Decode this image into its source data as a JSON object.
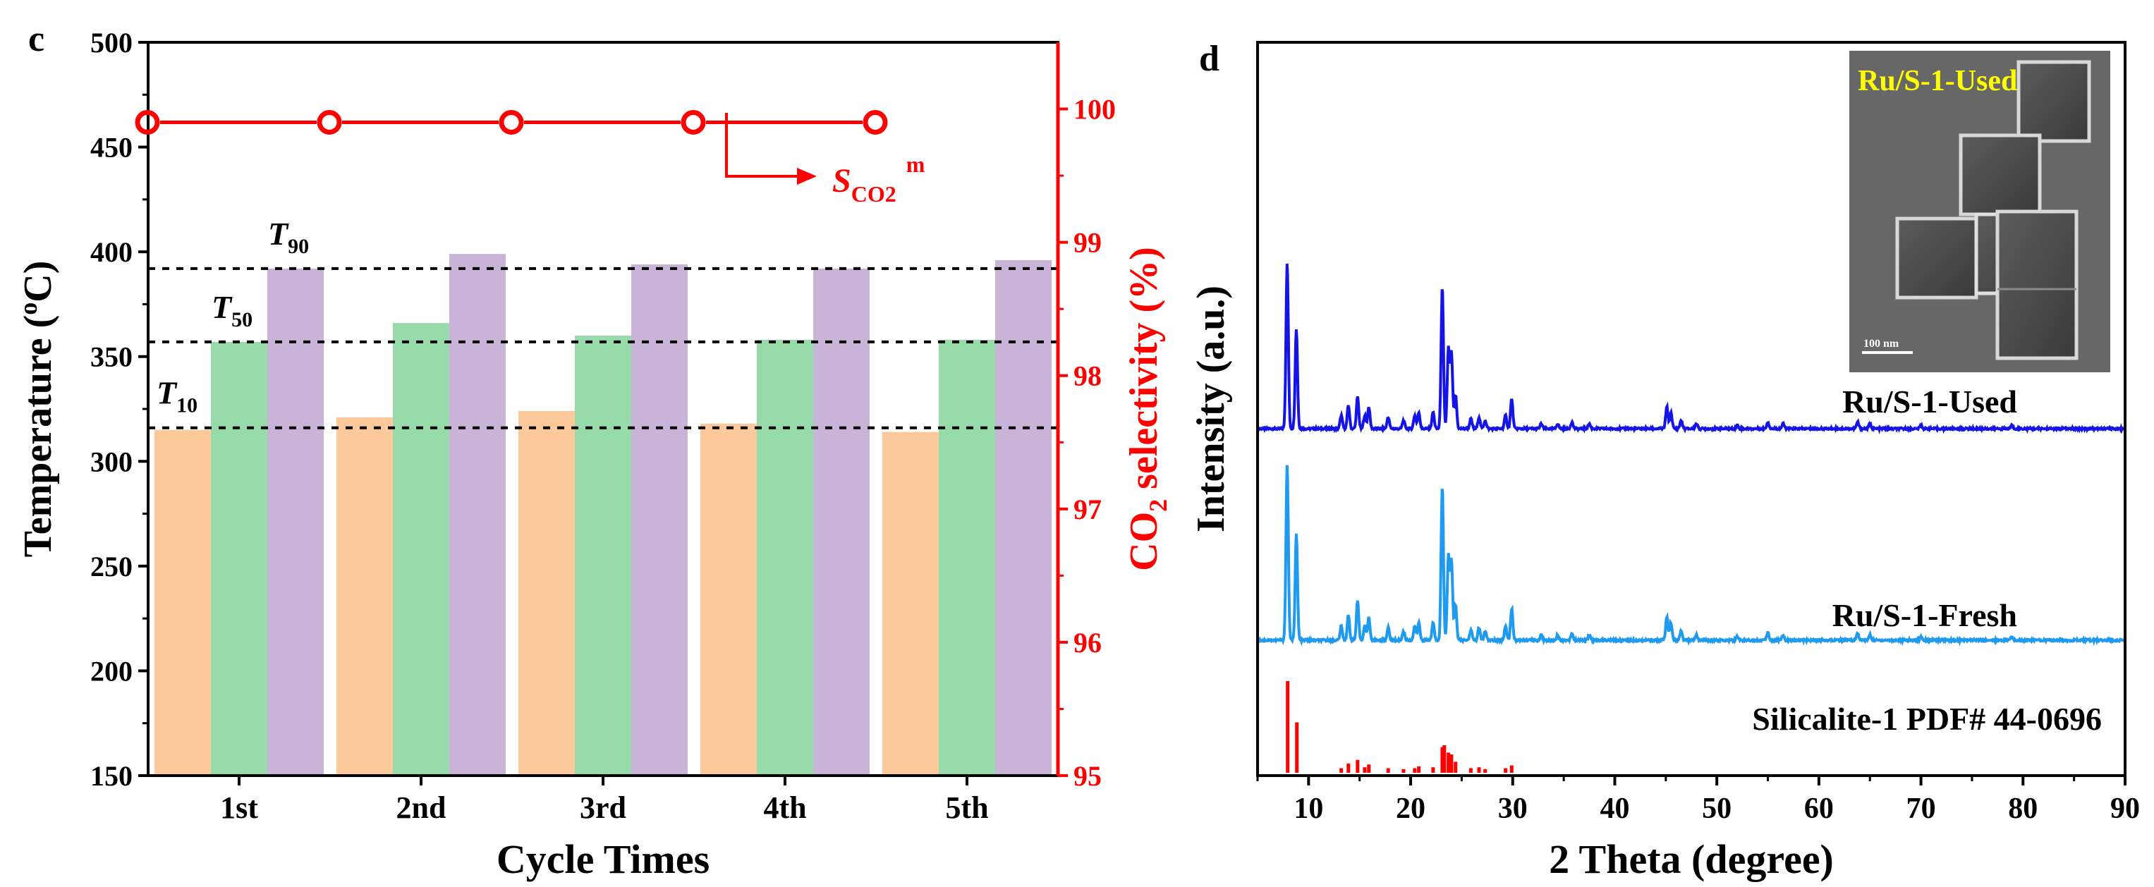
{
  "chart_data": [
    {
      "panel": "c",
      "type": "bar",
      "title": "",
      "xlabel": "Cycle Times",
      "ylabel": "Temperature (oC)",
      "ylabel_parts": [
        "Temperature (",
        "o",
        "C)"
      ],
      "ylim": [
        150,
        500
      ],
      "yticks": [
        150,
        200,
        250,
        300,
        350,
        400,
        450,
        500
      ],
      "categories": [
        "1st",
        "2nd",
        "3rd",
        "4th",
        "5th"
      ],
      "series": [
        {
          "name": "T10",
          "color": "#fdc99a",
          "values": [
            315,
            321,
            324,
            318,
            314
          ]
        },
        {
          "name": "T50",
          "color": "#97dbab",
          "values": [
            357,
            366,
            360,
            358,
            358
          ]
        },
        {
          "name": "T90",
          "color": "#c9b3d6",
          "values": [
            392,
            399,
            394,
            392,
            396
          ]
        }
      ],
      "reference_lines": [
        {
          "label_main": "T",
          "label_sub": "10",
          "value": 316
        },
        {
          "label_main": "T",
          "label_sub": "50",
          "value": 357
        },
        {
          "label_main": "T",
          "label_sub": "90",
          "value": 392
        }
      ],
      "secondary_axis": {
        "label": "CO2 selectivity (%)",
        "label_parts": [
          "CO",
          "2",
          " selectivity (%)"
        ],
        "ylim": [
          95,
          100.5
        ],
        "yticks": [
          95,
          96,
          97,
          98,
          99,
          100
        ],
        "color": "#ff0000",
        "series": {
          "name": "SCO2m",
          "values": [
            99.9,
            99.9,
            99.9,
            99.9,
            99.9
          ]
        }
      },
      "annotation": {
        "main": "S",
        "sub": "CO2",
        "sup": "m"
      }
    },
    {
      "panel": "d",
      "type": "line",
      "title": "",
      "xlabel": "2 Theta (degree)",
      "ylabel": "Intensity (a.u.)",
      "xlim": [
        5,
        90
      ],
      "xticks": [
        10,
        20,
        30,
        40,
        50,
        60,
        70,
        80,
        90
      ],
      "series": [
        {
          "name": "Ru/S-1-Used",
          "color": "#1414e6",
          "peaks": [
            [
              7.9,
              1.0
            ],
            [
              8.8,
              0.6
            ],
            [
              13.2,
              0.08
            ],
            [
              13.9,
              0.14
            ],
            [
              14.8,
              0.19
            ],
            [
              15.5,
              0.08
            ],
            [
              15.9,
              0.13
            ],
            [
              17.8,
              0.07
            ],
            [
              19.3,
              0.05
            ],
            [
              20.4,
              0.08
            ],
            [
              20.8,
              0.1
            ],
            [
              22.2,
              0.1
            ],
            [
              23.1,
              0.85
            ],
            [
              23.7,
              0.48
            ],
            [
              24.0,
              0.45
            ],
            [
              24.4,
              0.2
            ],
            [
              25.9,
              0.06
            ],
            [
              26.7,
              0.07
            ],
            [
              27.3,
              0.05
            ],
            [
              29.3,
              0.08
            ],
            [
              29.9,
              0.18
            ],
            [
              32.8,
              0.03
            ],
            [
              34.4,
              0.03
            ],
            [
              35.8,
              0.04
            ],
            [
              37.5,
              0.03
            ],
            [
              45.1,
              0.13
            ],
            [
              45.5,
              0.1
            ],
            [
              46.5,
              0.05
            ],
            [
              48.0,
              0.03
            ],
            [
              52.0,
              0.02
            ],
            [
              55.0,
              0.04
            ],
            [
              56.5,
              0.03
            ],
            [
              63.8,
              0.04
            ],
            [
              65.0,
              0.03
            ],
            [
              70.0,
              0.02
            ],
            [
              78.9,
              0.02
            ]
          ]
        },
        {
          "name": "Ru/S-1-Fresh",
          "color": "#1e9bf0",
          "peaks": [
            [
              7.9,
              1.0
            ],
            [
              8.8,
              0.6
            ],
            [
              13.2,
              0.08
            ],
            [
              13.9,
              0.14
            ],
            [
              14.8,
              0.22
            ],
            [
              15.5,
              0.08
            ],
            [
              15.9,
              0.13
            ],
            [
              17.8,
              0.07
            ],
            [
              19.3,
              0.05
            ],
            [
              20.4,
              0.08
            ],
            [
              20.8,
              0.1
            ],
            [
              22.2,
              0.1
            ],
            [
              23.1,
              0.88
            ],
            [
              23.7,
              0.48
            ],
            [
              24.0,
              0.45
            ],
            [
              24.4,
              0.2
            ],
            [
              25.9,
              0.06
            ],
            [
              26.7,
              0.07
            ],
            [
              27.3,
              0.05
            ],
            [
              29.3,
              0.08
            ],
            [
              29.9,
              0.18
            ],
            [
              32.8,
              0.03
            ],
            [
              34.4,
              0.03
            ],
            [
              35.8,
              0.04
            ],
            [
              37.5,
              0.03
            ],
            [
              45.1,
              0.13
            ],
            [
              45.5,
              0.1
            ],
            [
              46.5,
              0.05
            ],
            [
              48.0,
              0.03
            ],
            [
              52.0,
              0.02
            ],
            [
              55.0,
              0.04
            ],
            [
              56.5,
              0.03
            ],
            [
              63.8,
              0.04
            ],
            [
              65.0,
              0.03
            ],
            [
              70.0,
              0.02
            ],
            [
              78.9,
              0.02
            ]
          ]
        },
        {
          "name": "Silicalite-1 PDF# 44-0696",
          "color": "#ff0000",
          "type": "stick",
          "peaks": [
            [
              7.95,
              1.0
            ],
            [
              8.85,
              0.55
            ],
            [
              13.2,
              0.05
            ],
            [
              13.9,
              0.1
            ],
            [
              14.8,
              0.14
            ],
            [
              15.5,
              0.06
            ],
            [
              15.9,
              0.09
            ],
            [
              17.8,
              0.05
            ],
            [
              19.3,
              0.04
            ],
            [
              20.4,
              0.05
            ],
            [
              20.8,
              0.07
            ],
            [
              22.2,
              0.06
            ],
            [
              23.1,
              0.28
            ],
            [
              23.3,
              0.3
            ],
            [
              23.7,
              0.22
            ],
            [
              24.0,
              0.2
            ],
            [
              24.4,
              0.12
            ],
            [
              25.9,
              0.05
            ],
            [
              26.7,
              0.06
            ],
            [
              27.3,
              0.04
            ],
            [
              29.3,
              0.05
            ],
            [
              29.9,
              0.08
            ]
          ]
        }
      ],
      "inset": {
        "label": "Ru/S-1-Used",
        "scale_bar": "100 nm"
      }
    }
  ]
}
